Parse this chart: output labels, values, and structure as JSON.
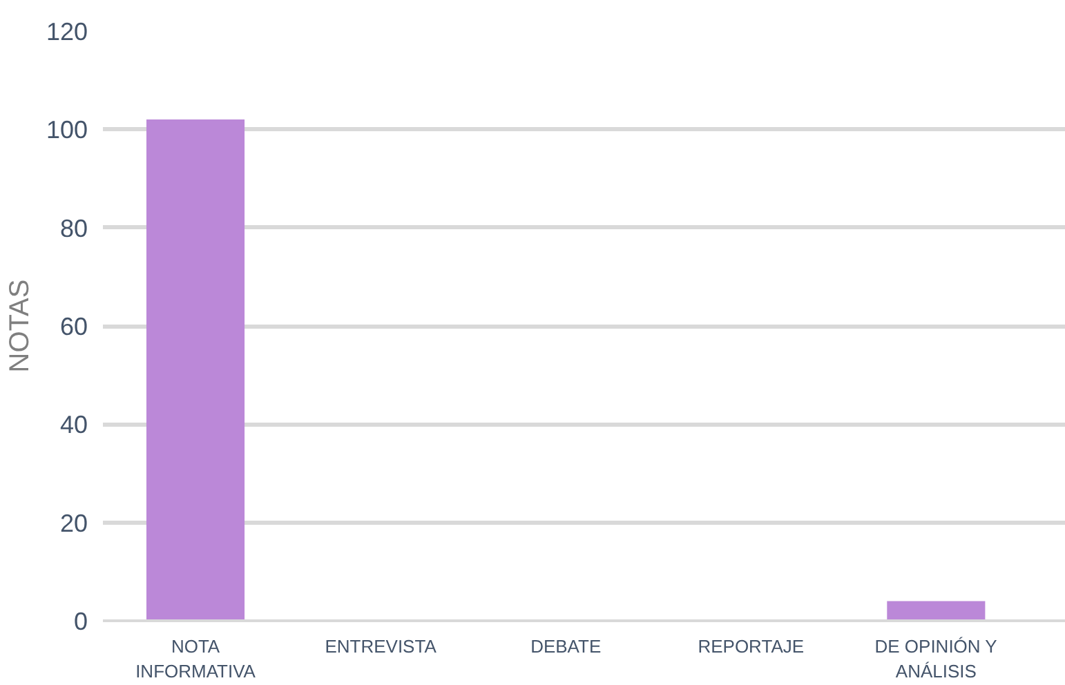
{
  "chart_data": {
    "type": "bar",
    "ylabel": "NOTAS",
    "categories": [
      "NOTA\nINFORMATIVA",
      "ENTREVISTA",
      "DEBATE",
      "REPORTAJE",
      "DE OPINIÓN Y\nANÁLISIS"
    ],
    "values": [
      102,
      0,
      0,
      0,
      4
    ],
    "color": "#bb88d8",
    "ylim": [
      0,
      120
    ],
    "yticks": [
      0,
      20,
      40,
      60,
      80,
      100,
      120
    ],
    "grid": "y"
  }
}
